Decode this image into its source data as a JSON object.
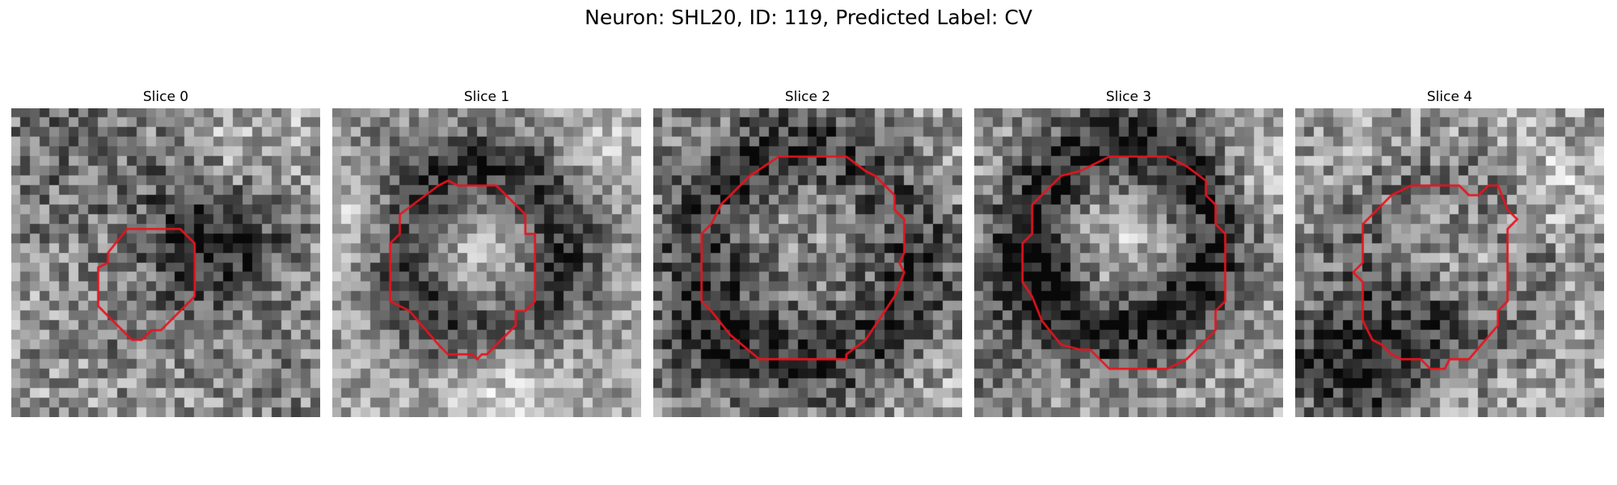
{
  "figure": {
    "title": "Neuron: SHL20, ID: 119, Predicted Label: CV",
    "contour_color": "#e8141e",
    "colormap": "gray"
  },
  "slices": [
    {
      "title": "Slice 0",
      "texture": "weak-dark-blob-upper-right"
    },
    {
      "title": "Slice 1",
      "texture": "dark-ring-bright-center"
    },
    {
      "title": "Slice 2",
      "texture": "dark-ring-mottled-center"
    },
    {
      "title": "Slice 3",
      "texture": "dark-upper-ring-bright-center"
    },
    {
      "title": "Slice 4",
      "texture": "faint-ring-dark-lower-left"
    }
  ]
}
